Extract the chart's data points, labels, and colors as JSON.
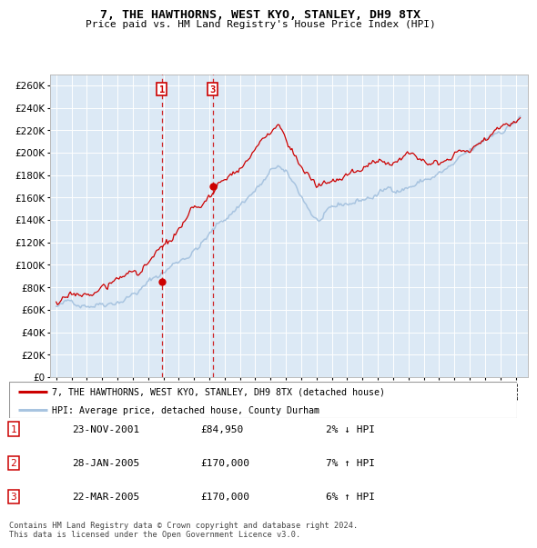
{
  "title": "7, THE HAWTHORNS, WEST KYO, STANLEY, DH9 8TX",
  "subtitle": "Price paid vs. HM Land Registry's House Price Index (HPI)",
  "hpi_color": "#a8c4e0",
  "sale_color": "#cc0000",
  "plot_bg": "#dce9f5",
  "ylim": [
    0,
    270000
  ],
  "yticks": [
    0,
    20000,
    40000,
    60000,
    80000,
    100000,
    120000,
    140000,
    160000,
    180000,
    200000,
    220000,
    240000,
    260000
  ],
  "sale1_date": 2001.9,
  "sale1_price": 84950,
  "sale2_date": 2005.07,
  "sale2_price": 170000,
  "sale3_date": 2005.23,
  "sale3_price": 170000,
  "legend_entries": [
    "7, THE HAWTHORNS, WEST KYO, STANLEY, DH9 8TX (detached house)",
    "HPI: Average price, detached house, County Durham"
  ],
  "table_rows": [
    [
      "1",
      "23-NOV-2001",
      "£84,950",
      "2% ↓ HPI"
    ],
    [
      "2",
      "28-JAN-2005",
      "£170,000",
      "7% ↑ HPI"
    ],
    [
      "3",
      "22-MAR-2005",
      "£170,000",
      "6% ↑ HPI"
    ]
  ],
  "footer": "Contains HM Land Registry data © Crown copyright and database right 2024.\nThis data is licensed under the Open Government Licence v3.0."
}
